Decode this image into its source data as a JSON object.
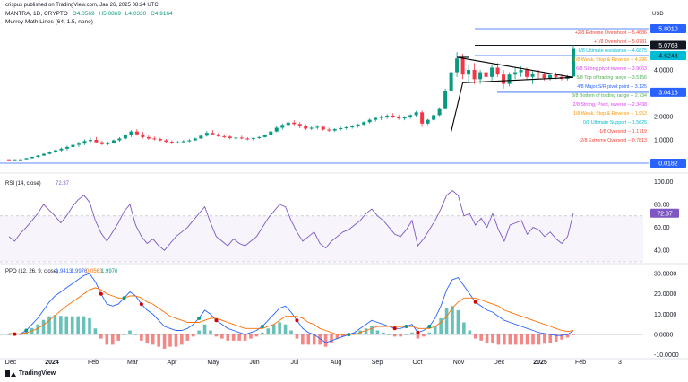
{
  "header": {
    "publisher": "crispus published on TradingView.com, Jan 26, 2025 08:24 UTC",
    "symbol": "MANTRA, 1D, CRYPTO",
    "ohlc": [
      "O4.0569",
      "H5.0869",
      "L4.0330",
      "C4.9164"
    ],
    "indicator": "Murrey Math Lines (64, 1.5, none)",
    "currency": "USD",
    "brand": "TradingView"
  },
  "colors": {
    "up": "#089981",
    "down": "#f23645",
    "rsi": "#7e57c2",
    "ppo": "#2962ff",
    "signal": "#ff6d00",
    "hline": "#2962ff",
    "trend": "#000000",
    "murrey_strong": "#e040fb",
    "murrey_major": "#2962ff",
    "murrey_weak": "#ff9800",
    "murrey_green": "#4caf50",
    "murrey_ultimate": "#00bcd4",
    "murrey_extreme": "#f44336"
  },
  "chart_data": [
    {
      "type": "candlestick",
      "title": "MANTRA, 1D, CRYPTO",
      "x_ticks": [
        "Dec",
        "2024",
        "Feb",
        "Mar",
        "Apr",
        "May",
        "Jun",
        "Jul",
        "Aug",
        "Sep",
        "Oct",
        "Nov",
        "Dec",
        "2025",
        "Feb",
        "3"
      ],
      "y_ticks": [
        1.0,
        2.0,
        3.0,
        4.0
      ],
      "price_tags": [
        {
          "value": 5.801,
          "label": "5.8010",
          "style": "light"
        },
        {
          "value": 5.0763,
          "label": "5.0763",
          "style": "dark"
        },
        {
          "value": 4.6248,
          "label": "4.6248",
          "style": "teal"
        },
        {
          "value": 3.0416,
          "label": "3.0416",
          "style": "blue"
        },
        {
          "value": 0.0182,
          "label": "0.0182",
          "style": "blue"
        }
      ],
      "murrey_levels": [
        {
          "label": "+2/8 Extreme Overshoot --",
          "value": "5.4686",
          "style": "extreme"
        },
        {
          "label": "+1/8 Overshoot --",
          "value": "5.0781",
          "style": "extreme"
        },
        {
          "label": "8/8 Ultimate resistance --",
          "value": "4.6875",
          "style": "ultimate"
        },
        {
          "label": "7/8 Weak, Stop & Reverse --",
          "value": "4.296",
          "style": "weak"
        },
        {
          "label": "6/8 Strong pivot reverse --",
          "value": "3.9063",
          "style": "strong"
        },
        {
          "label": "5/8 Top of trading range --",
          "value": "3.5156",
          "style": "green"
        },
        {
          "label": "4/8 Major S/R pivot point --",
          "value": "3.125",
          "style": "major"
        },
        {
          "label": "3/8 Bottom of trading range --",
          "value": "2.734",
          "style": "green"
        },
        {
          "label": "2/8 Strong, Pivot, reverse --",
          "value": "2.3438",
          "style": "strong"
        },
        {
          "label": "1/8 Weak, Stop & Reverse --",
          "value": "1.953",
          "style": "weak"
        },
        {
          "label": "0/8 Ultimate Support --",
          "value": "1.5625",
          "style": "ultimate"
        },
        {
          "label": "-1/8 Oversold --",
          "value": "1.1719",
          "style": "extreme"
        },
        {
          "label": "-2/8 Extreme Oversold --",
          "value": "0.7813",
          "style": "extreme"
        }
      ],
      "ohlc_series": [
        [
          0.18,
          0.18,
          0.16,
          0.17
        ],
        [
          0.17,
          0.18,
          0.16,
          0.18
        ],
        [
          0.18,
          0.19,
          0.17,
          0.18
        ],
        [
          0.18,
          0.24,
          0.18,
          0.23
        ],
        [
          0.23,
          0.3,
          0.21,
          0.28
        ],
        [
          0.28,
          0.36,
          0.26,
          0.34
        ],
        [
          0.34,
          0.44,
          0.32,
          0.41
        ],
        [
          0.41,
          0.52,
          0.38,
          0.49
        ],
        [
          0.49,
          0.6,
          0.45,
          0.56
        ],
        [
          0.56,
          0.68,
          0.5,
          0.63
        ],
        [
          0.63,
          0.76,
          0.56,
          0.7
        ],
        [
          0.7,
          0.84,
          0.62,
          0.79
        ],
        [
          0.79,
          0.92,
          0.7,
          0.84
        ],
        [
          0.84,
          1.02,
          0.78,
          0.95
        ],
        [
          0.95,
          1.1,
          0.86,
          1.0
        ],
        [
          1.0,
          1.12,
          0.85,
          0.9
        ],
        [
          0.9,
          0.96,
          0.78,
          0.82
        ],
        [
          0.82,
          0.92,
          0.78,
          0.88
        ],
        [
          0.88,
          1.02,
          0.84,
          0.98
        ],
        [
          0.98,
          1.12,
          0.92,
          1.06
        ],
        [
          1.06,
          1.26,
          1.0,
          1.2
        ],
        [
          1.2,
          1.42,
          1.12,
          1.36
        ],
        [
          1.36,
          1.46,
          1.18,
          1.24
        ],
        [
          1.24,
          1.34,
          1.06,
          1.12
        ],
        [
          1.12,
          1.2,
          1.0,
          1.06
        ],
        [
          1.06,
          1.14,
          0.98,
          1.04
        ],
        [
          1.04,
          1.1,
          0.94,
          0.98
        ],
        [
          0.98,
          1.04,
          0.88,
          0.92
        ],
        [
          0.92,
          0.98,
          0.82,
          0.88
        ],
        [
          0.88,
          0.96,
          0.84,
          0.9
        ],
        [
          0.9,
          1.0,
          0.86,
          0.94
        ],
        [
          0.94,
          1.04,
          0.9,
          0.98
        ],
        [
          0.98,
          1.1,
          0.96,
          1.06
        ],
        [
          1.06,
          1.22,
          1.04,
          1.18
        ],
        [
          1.18,
          1.38,
          1.14,
          1.3
        ],
        [
          1.3,
          1.42,
          1.2,
          1.24
        ],
        [
          1.24,
          1.3,
          1.12,
          1.16
        ],
        [
          1.16,
          1.24,
          1.08,
          1.14
        ],
        [
          1.14,
          1.2,
          1.02,
          1.08
        ],
        [
          1.08,
          1.16,
          1.0,
          1.1
        ],
        [
          1.1,
          1.18,
          1.02,
          1.06
        ],
        [
          1.06,
          1.12,
          0.98,
          1.04
        ],
        [
          1.04,
          1.1,
          0.98,
          1.08
        ],
        [
          1.08,
          1.16,
          1.04,
          1.12
        ],
        [
          1.12,
          1.24,
          1.1,
          1.2
        ],
        [
          1.2,
          1.4,
          1.18,
          1.36
        ],
        [
          1.36,
          1.6,
          1.32,
          1.52
        ],
        [
          1.52,
          1.7,
          1.44,
          1.64
        ],
        [
          1.64,
          1.78,
          1.56,
          1.74
        ],
        [
          1.74,
          1.84,
          1.62,
          1.68
        ],
        [
          1.68,
          1.76,
          1.5,
          1.58
        ],
        [
          1.58,
          1.66,
          1.42,
          1.48
        ],
        [
          1.48,
          1.6,
          1.42,
          1.52
        ],
        [
          1.52,
          1.64,
          1.44,
          1.56
        ],
        [
          1.56,
          1.62,
          1.4,
          1.44
        ],
        [
          1.44,
          1.52,
          1.34,
          1.4
        ],
        [
          1.4,
          1.5,
          1.34,
          1.46
        ],
        [
          1.46,
          1.56,
          1.4,
          1.5
        ],
        [
          1.5,
          1.6,
          1.44,
          1.54
        ],
        [
          1.54,
          1.64,
          1.48,
          1.58
        ],
        [
          1.58,
          1.7,
          1.52,
          1.66
        ],
        [
          1.66,
          1.8,
          1.6,
          1.76
        ],
        [
          1.76,
          1.92,
          1.7,
          1.86
        ],
        [
          1.86,
          2.0,
          1.78,
          1.94
        ],
        [
          1.94,
          2.06,
          1.84,
          1.98
        ],
        [
          1.98,
          2.1,
          1.9,
          2.04
        ],
        [
          2.04,
          2.14,
          1.94,
          2.0
        ],
        [
          2.0,
          2.08,
          1.86,
          1.92
        ],
        [
          1.92,
          2.02,
          1.84,
          1.96
        ],
        [
          1.96,
          2.1,
          1.9,
          2.06
        ],
        [
          2.06,
          2.24,
          2.0,
          2.18
        ],
        [
          2.18,
          2.26,
          1.56,
          1.7
        ],
        [
          1.7,
          1.9,
          1.64,
          1.86
        ],
        [
          1.86,
          2.1,
          1.82,
          2.06
        ],
        [
          2.06,
          2.4,
          2.02,
          2.36
        ],
        [
          2.36,
          3.2,
          2.3,
          3.1
        ],
        [
          3.1,
          4.1,
          3.0,
          3.9
        ],
        [
          3.9,
          4.78,
          3.7,
          4.5
        ],
        [
          4.5,
          4.7,
          3.6,
          3.8
        ],
        [
          3.8,
          4.2,
          3.5,
          4.0
        ],
        [
          4.0,
          4.3,
          3.4,
          3.6
        ],
        [
          3.6,
          4.0,
          3.4,
          3.9
        ],
        [
          3.9,
          4.1,
          3.5,
          3.7
        ],
        [
          3.7,
          4.2,
          3.5,
          4.1
        ],
        [
          4.1,
          4.3,
          3.7,
          3.8
        ],
        [
          3.8,
          4.0,
          3.2,
          3.4
        ],
        [
          3.4,
          3.9,
          3.3,
          3.8
        ],
        [
          3.8,
          4.1,
          3.6,
          3.9
        ],
        [
          3.9,
          4.15,
          3.7,
          4.0
        ],
        [
          4.0,
          4.1,
          3.6,
          3.7
        ],
        [
          3.7,
          3.95,
          3.4,
          3.85
        ],
        [
          3.85,
          4.0,
          3.6,
          3.8
        ],
        [
          3.8,
          3.9,
          3.55,
          3.65
        ],
        [
          3.65,
          3.85,
          3.55,
          3.78
        ],
        [
          3.78,
          3.9,
          3.6,
          3.7
        ],
        [
          3.7,
          3.8,
          3.55,
          3.62
        ],
        [
          3.62,
          3.78,
          3.55,
          3.72
        ],
        [
          3.72,
          5.09,
          3.7,
          4.92
        ]
      ]
    },
    {
      "type": "line",
      "title": "RSI (14, close)",
      "value_label": "72.37",
      "y_ticks": [
        40.0,
        60.0,
        80.0,
        100.0
      ],
      "ylim": [
        30,
        105
      ],
      "bands": [
        30,
        50,
        70
      ],
      "series": [
        {
          "values": [
            52,
            48,
            55,
            60,
            66,
            72,
            80,
            75,
            70,
            64,
            70,
            78,
            84,
            88,
            82,
            66,
            55,
            48,
            56,
            64,
            74,
            80,
            62,
            52,
            46,
            50,
            44,
            40,
            46,
            52,
            56,
            60,
            66,
            72,
            78,
            64,
            52,
            48,
            44,
            50,
            46,
            44,
            48,
            52,
            60,
            68,
            74,
            80,
            78,
            66,
            56,
            48,
            52,
            56,
            46,
            42,
            48,
            52,
            56,
            58,
            62,
            66,
            72,
            76,
            70,
            66,
            60,
            54,
            52,
            58,
            66,
            44,
            50,
            58,
            66,
            76,
            88,
            92,
            88,
            70,
            72,
            62,
            68,
            60,
            72,
            58,
            48,
            62,
            64,
            66,
            54,
            60,
            58,
            52,
            56,
            50,
            46,
            52,
            72.37
          ]
        }
      ]
    },
    {
      "type": "line",
      "title": "PPO (12, 26, 9, close)",
      "value_labels": [
        "1.9413",
        "1.9976",
        "0.0563",
        "1.9976"
      ],
      "y_ticks": [
        -10.0,
        0.0,
        10.0,
        20.0,
        30.0
      ],
      "ylim": [
        -11,
        34
      ],
      "series": [
        {
          "values": [
            0.5,
            0.2,
            0.3,
            2,
            5,
            8,
            12,
            16,
            19,
            21,
            23,
            25,
            27,
            29,
            30,
            26,
            20,
            15,
            14,
            15,
            18,
            21,
            19,
            15,
            12,
            10,
            7,
            4,
            3,
            2,
            2,
            3,
            5,
            8,
            12,
            10,
            7,
            5,
            3,
            2,
            1,
            0,
            1,
            2,
            4,
            7,
            10,
            13,
            14,
            11,
            7,
            3,
            1,
            0,
            -2,
            -4,
            -3,
            -2,
            -1,
            0,
            1,
            3,
            5,
            7,
            6,
            5,
            4,
            3,
            3,
            4,
            5,
            1,
            2,
            4,
            8,
            14,
            22,
            27,
            28,
            24,
            20,
            16,
            14,
            12,
            11,
            9,
            7,
            6,
            5,
            4,
            3,
            2,
            1,
            0.5,
            0,
            -0.5,
            -0.5,
            0,
            1.94
          ]
        },
        {
          "values": [
            0.5,
            0.4,
            0.4,
            0.8,
            1.8,
            3.0,
            4.8,
            7.0,
            9.4,
            11.8,
            14,
            16,
            18,
            20,
            22,
            23,
            22,
            20,
            19,
            18,
            18,
            19,
            19,
            18,
            16,
            15,
            13,
            11,
            9,
            8,
            7,
            6,
            6,
            6,
            7,
            8,
            8,
            7,
            6,
            5,
            4,
            3,
            3,
            3,
            3,
            4,
            5,
            7,
            9,
            9,
            9,
            8,
            6,
            5,
            3,
            2,
            1,
            0,
            0,
            0,
            0,
            1,
            2,
            3,
            4,
            4,
            4,
            4,
            4,
            4,
            4,
            3,
            3,
            3,
            4,
            6,
            9,
            13,
            16,
            18,
            18,
            18,
            17,
            16,
            15,
            14,
            12,
            11,
            10,
            9,
            8,
            7,
            6,
            5,
            4,
            3,
            2,
            1.5,
            2.0
          ]
        }
      ]
    }
  ]
}
